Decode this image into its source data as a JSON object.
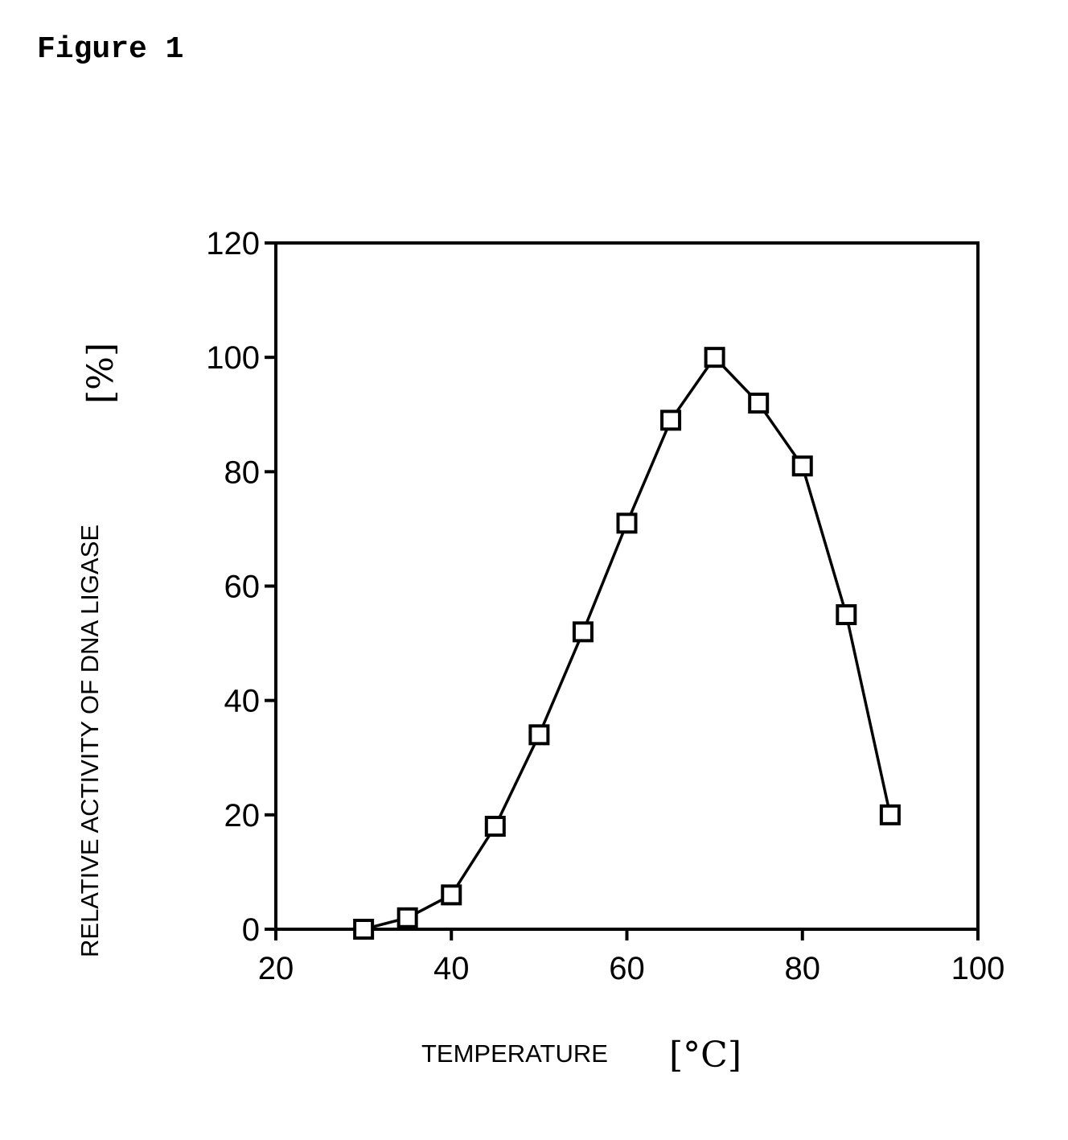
{
  "figure_label": "Figure 1",
  "chart_data": {
    "type": "line",
    "title": "",
    "xlabel": "TEMPERATURE",
    "xunit": "[°C]",
    "ylabel": "RELATIVE ACTIVITY OF DNA LIGASE",
    "yunit": "[%]",
    "xlim": [
      20,
      100
    ],
    "ylim": [
      0,
      120
    ],
    "xticks": [
      20,
      40,
      60,
      80,
      100
    ],
    "yticks": [
      0,
      20,
      40,
      60,
      80,
      100,
      120
    ],
    "grid": false,
    "marker": "open-square",
    "series": [
      {
        "x": [
          30,
          35,
          40,
          45,
          50,
          55,
          60,
          65,
          70,
          75,
          80,
          85,
          90
        ],
        "y": [
          0,
          2,
          6,
          18,
          34,
          52,
          71,
          89,
          100,
          92,
          81,
          55,
          20
        ]
      }
    ]
  }
}
